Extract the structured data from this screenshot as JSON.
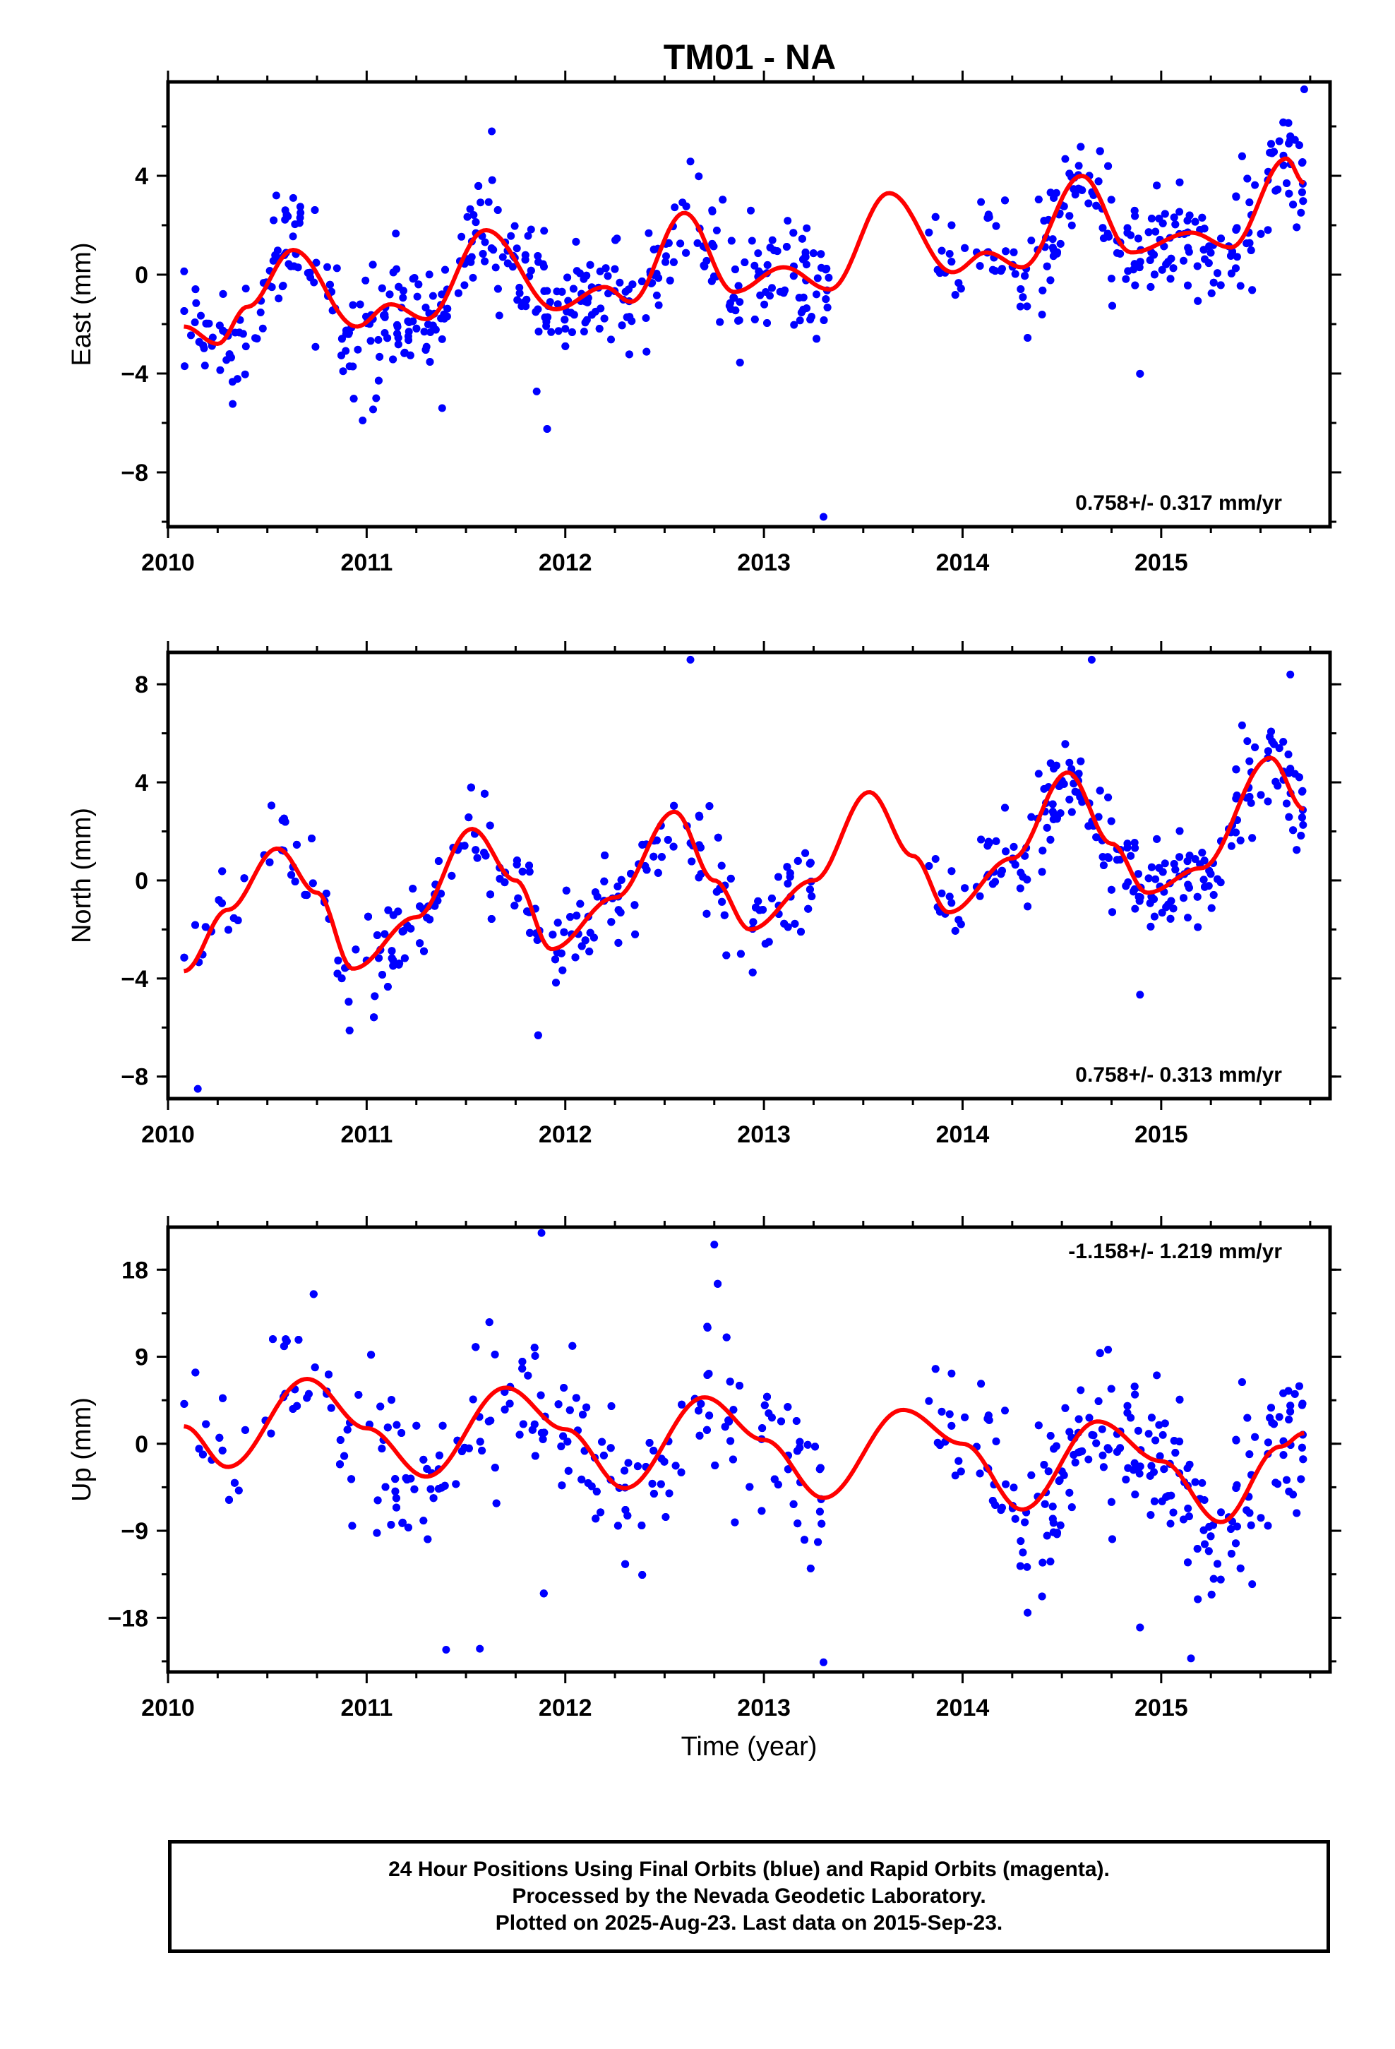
{
  "title": "TM01 - NA",
  "chart_data": [
    {
      "type": "scatter",
      "panel": "east",
      "ylabel": "East (mm)",
      "xlabel": "",
      "ylim": [
        -10.2,
        7.8
      ],
      "yticks": [
        -8,
        -4,
        0,
        4
      ],
      "yticklabels": [
        "−8",
        "−4",
        "0",
        "4"
      ],
      "xlim": [
        2010.0,
        2015.85
      ],
      "xticks": [
        2010,
        2011,
        2012,
        2013,
        2014,
        2015
      ],
      "xticklabels": [
        "2010",
        "2011",
        "2012",
        "2013",
        "2014",
        "2015"
      ],
      "rate_label": "0.758+/- 0.317 mm/yr",
      "rate_position": "bottom-right",
      "point_color": "#0000ff",
      "fit_color": "#ff0000",
      "fit_curve": {
        "x": [
          2010.08,
          2010.25,
          2010.4,
          2010.63,
          2010.95,
          2011.12,
          2011.3,
          2011.6,
          2011.95,
          2012.2,
          2012.33,
          2012.6,
          2012.85,
          2013.1,
          2013.33,
          2013.63,
          2013.95,
          2014.12,
          2014.3,
          2014.6,
          2014.85,
          2015.15,
          2015.35,
          2015.63,
          2015.72
        ],
        "y": [
          -2.1,
          -2.8,
          -1.3,
          1.0,
          -2.1,
          -1.2,
          -1.8,
          1.8,
          -1.4,
          -0.5,
          -1.1,
          2.5,
          -0.7,
          0.3,
          -0.6,
          3.3,
          0.1,
          0.9,
          0.3,
          4.0,
          0.9,
          1.7,
          1.1,
          4.7,
          3.7
        ]
      },
      "segments": [
        {
          "x0": 2010.08,
          "x1": 2013.33,
          "n": 620,
          "sd": 1.25
        },
        {
          "x0": 2013.83,
          "x1": 2015.72,
          "n": 400,
          "sd": 1.25
        }
      ],
      "outliers": {
        "x": [
          2013.3,
          2011.38,
          2010.98,
          2011.63,
          2015.72
        ],
        "y": [
          -9.8,
          -5.4,
          -5.9,
          5.8,
          7.5
        ]
      }
    },
    {
      "type": "scatter",
      "panel": "north",
      "ylabel": "North (mm)",
      "xlabel": "",
      "ylim": [
        -8.9,
        9.3
      ],
      "yticks": [
        -8,
        -4,
        0,
        4,
        8
      ],
      "yticklabels": [
        "−8",
        "−4",
        "0",
        "4",
        "8"
      ],
      "xlim": [
        2010.0,
        2015.85
      ],
      "xticks": [
        2010,
        2011,
        2012,
        2013,
        2014,
        2015
      ],
      "xticklabels": [
        "2010",
        "2011",
        "2012",
        "2013",
        "2014",
        "2015"
      ],
      "rate_label": "0.758+/- 0.313 mm/yr",
      "rate_position": "bottom-right",
      "point_color": "#0000ff",
      "fit_color": "#ff0000",
      "fit_curve": {
        "x": [
          2010.08,
          2010.3,
          2010.55,
          2010.75,
          2010.93,
          2011.25,
          2011.53,
          2011.75,
          2011.93,
          2012.25,
          2012.55,
          2012.75,
          2012.93,
          2013.25,
          2013.53,
          2013.75,
          2013.93,
          2014.25,
          2014.53,
          2014.75,
          2014.93,
          2015.2,
          2015.55,
          2015.72
        ],
        "y": [
          -3.7,
          -1.2,
          1.3,
          -0.5,
          -3.6,
          -1.5,
          2.1,
          0.0,
          -2.8,
          -0.7,
          2.8,
          0.0,
          -2.0,
          0.0,
          3.6,
          1.0,
          -1.3,
          0.9,
          4.4,
          1.5,
          -0.5,
          0.5,
          5.0,
          2.9
        ]
      },
      "segments": [
        {
          "x0": 2010.08,
          "x1": 2013.25,
          "n": 620,
          "sd": 1.1
        },
        {
          "x0": 2013.83,
          "x1": 2015.72,
          "n": 400,
          "sd": 1.1
        }
      ],
      "outliers": {
        "x": [
          2010.15,
          2012.63,
          2014.65,
          2015.65
        ],
        "y": [
          -8.5,
          9.0,
          9.0,
          8.4
        ]
      }
    },
    {
      "type": "scatter",
      "panel": "up",
      "ylabel": "Up (mm)",
      "xlabel": "Time (year)",
      "ylim": [
        -23.6,
        22.4
      ],
      "yticks": [
        -18,
        -9,
        0,
        9,
        18
      ],
      "yticklabels": [
        "−18",
        "−9",
        "0",
        "9",
        "18"
      ],
      "xlim": [
        2010.0,
        2015.85
      ],
      "xticks": [
        2010,
        2011,
        2012,
        2013,
        2014,
        2015
      ],
      "xticklabels": [
        "2010",
        "2011",
        "2012",
        "2013",
        "2014",
        "2015"
      ],
      "rate_label": "-1.158+/- 1.219 mm/yr",
      "rate_position": "top-right",
      "point_color": "#0000ff",
      "fit_color": "#ff0000",
      "fit_curve": {
        "x": [
          2010.08,
          2010.3,
          2010.7,
          2011.0,
          2011.3,
          2011.7,
          2012.0,
          2012.3,
          2012.7,
          2013.0,
          2013.3,
          2013.7,
          2014.0,
          2014.3,
          2014.68,
          2015.0,
          2015.3,
          2015.6,
          2015.72
        ],
        "y": [
          1.8,
          -2.4,
          6.7,
          1.6,
          -3.4,
          5.8,
          1.5,
          -4.6,
          4.8,
          0.4,
          -5.6,
          3.5,
          0.0,
          -6.8,
          2.3,
          -1.8,
          -8.1,
          -0.3,
          1.1
        ]
      },
      "segments": [
        {
          "x0": 2010.08,
          "x1": 2013.3,
          "n": 620,
          "sd": 4.6
        },
        {
          "x0": 2013.83,
          "x1": 2015.72,
          "n": 400,
          "sd": 4.6
        }
      ],
      "outliers": {
        "x": [
          2011.88,
          2012.75,
          2011.4,
          2011.57,
          2013.3,
          2015.15
        ],
        "y": [
          21.8,
          20.6,
          -21.3,
          -21.2,
          -22.6,
          -22.2
        ]
      }
    }
  ],
  "footer": {
    "line1": "24 Hour Positions Using Final Orbits (blue) and Rapid Orbits (magenta).",
    "line2": "Processed by the Nevada Geodetic Laboratory.",
    "line3": "Plotted on 2025-Aug-23. Last data on 2015-Sep-23."
  }
}
